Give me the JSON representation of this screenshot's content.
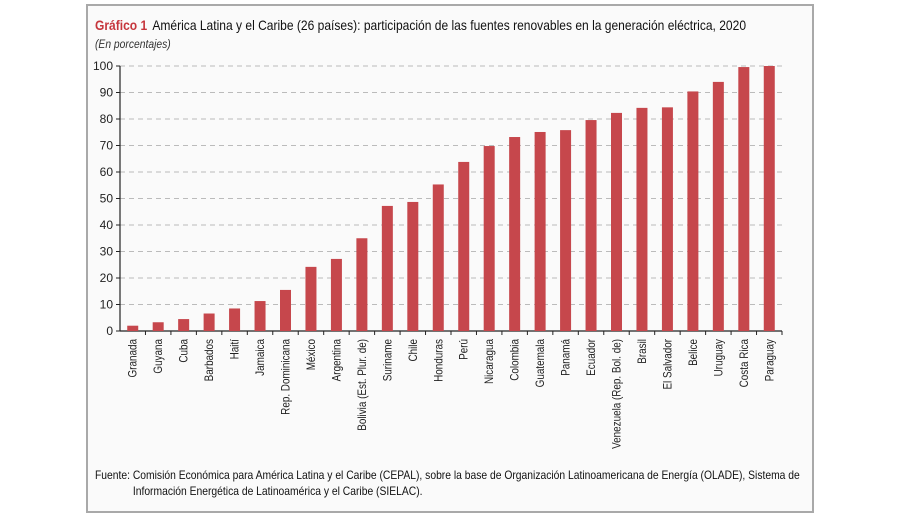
{
  "title_label": "Gráfico 1",
  "title": "América Latina y el Caribe (26 países): participación de las fuentes renovables en la generación eléctrica, 2020",
  "subtitle": "(En porcentajes)",
  "source_label": "Fuente:",
  "source_line1": "Comisión Económica para América Latina y el Caribe (CEPAL), sobre la base de Organización Latinoamericana de Energía (OLADE), Sistema de",
  "source_line2": "Información Energética de Latinoamérica y el Caribe (SIELAC).",
  "colors": {
    "bar": "#c6474c",
    "accent": "#c6363c",
    "grid": "#bbbbbb"
  },
  "chart_data": {
    "type": "bar",
    "title": "América Latina y el Caribe (26 países): participación de las fuentes renovables en la generación eléctrica, 2020",
    "xlabel": "",
    "ylabel": "",
    "ylim": [
      0,
      100
    ],
    "yticks": [
      0,
      10,
      20,
      30,
      40,
      50,
      60,
      70,
      80,
      90,
      100
    ],
    "grid": true,
    "categories": [
      "Granada",
      "Guyana",
      "Cuba",
      "Barbados",
      "Haití",
      "Jamaica",
      "Rep. Dominicana",
      "México",
      "Argentina",
      "Bolivia (Est. Plur. de)",
      "Suriname",
      "Chile",
      "Honduras",
      "Perú",
      "Nicaragua",
      "Colombia",
      "Guatemala",
      "Panamá",
      "Ecuador",
      "Venezuela (Rep. Bol. de)",
      "Brasil",
      "El Salvador",
      "Belice",
      "Uruguay",
      "Costa Rica",
      "Paraguay"
    ],
    "values": [
      2.0,
      3.3,
      4.5,
      6.6,
      8.5,
      11.3,
      15.5,
      24.2,
      27.2,
      35.0,
      47.2,
      48.7,
      55.3,
      63.8,
      69.8,
      73.2,
      75.1,
      75.8,
      79.6,
      82.3,
      84.2,
      84.4,
      90.4,
      94.0,
      99.6,
      100.0
    ]
  }
}
